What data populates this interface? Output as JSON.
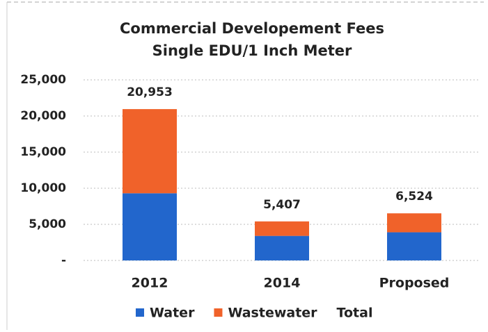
{
  "chart_data": {
    "type": "stacked_bar",
    "title": "Commercial  Developement Fees",
    "subtitle": "Single EDU/1 Inch Meter",
    "categories": [
      "2012",
      "2014",
      "Proposed"
    ],
    "series": [
      {
        "name": "Water",
        "color": "#2266cc",
        "values": [
          9300,
          3400,
          3900
        ]
      },
      {
        "name": "Wastewater",
        "color": "#f0622a",
        "values": [
          11653,
          2007,
          2624
        ]
      },
      {
        "name": "Total",
        "values": [
          20953,
          5407,
          6524
        ],
        "value_labels": [
          "20,953",
          "5,407",
          "6,524"
        ]
      }
    ],
    "ylim": [
      0,
      25000
    ],
    "yticks": [
      {
        "value": 0,
        "label": "-"
      },
      {
        "value": 5000,
        "label": "5,000"
      },
      {
        "value": 10000,
        "label": "10,000"
      },
      {
        "value": 15000,
        "label": "15,000"
      },
      {
        "value": 20000,
        "label": "20,000"
      },
      {
        "value": 25000,
        "label": "25,000"
      }
    ],
    "grid": true,
    "legend": "bottom"
  }
}
